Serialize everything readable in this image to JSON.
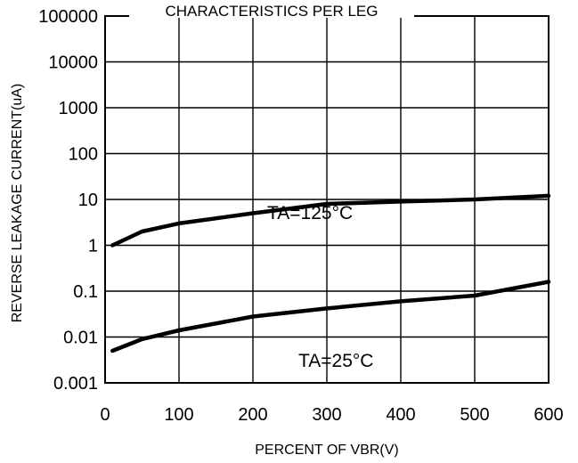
{
  "chart_data": {
    "type": "line",
    "title": "CHARACTERISTICS PER LEG",
    "xlabel": "PERCENT OF VBR(V)",
    "ylabel": "REVERSE LEAKAGE CURRENT(uA)",
    "xlim": [
      0,
      600
    ],
    "ylim": [
      0.001,
      100000
    ],
    "yscale": "log",
    "grid": true,
    "x_ticks": [
      "0",
      "100",
      "200",
      "300",
      "400",
      "500",
      "600"
    ],
    "y_ticks": [
      "100000",
      "10000",
      "1000",
      "100",
      "10",
      "1",
      "0.1",
      "0.01",
      "0.001"
    ],
    "series": [
      {
        "name": "TA=125°C",
        "x": [
          10,
          50,
          100,
          200,
          300,
          400,
          500,
          600
        ],
        "y": [
          1,
          2,
          3,
          5,
          8,
          9,
          10,
          12
        ]
      },
      {
        "name": "TA=25°C",
        "x": [
          10,
          50,
          100,
          200,
          300,
          400,
          500,
          600
        ],
        "y": [
          0.005,
          0.009,
          0.014,
          0.028,
          0.042,
          0.06,
          0.08,
          0.16
        ]
      }
    ]
  }
}
